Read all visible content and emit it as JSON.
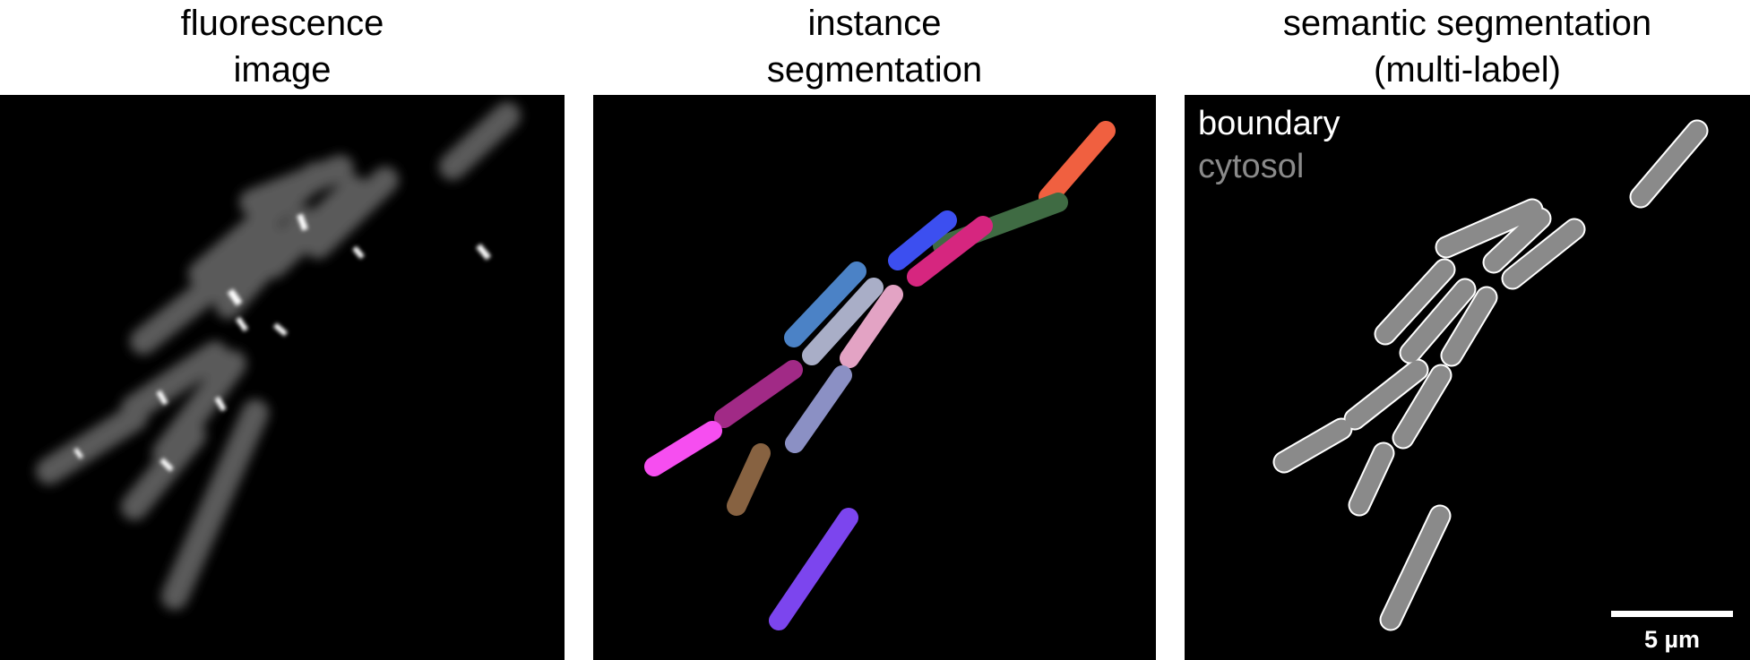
{
  "panels": {
    "fluorescence": {
      "title_line1": "fluorescence",
      "title_line2": "image"
    },
    "instance": {
      "title_line1": "instance",
      "title_line2": "segmentation"
    },
    "semantic": {
      "title_line1": "semantic segmentation",
      "title_line2": "(multi-label)",
      "legend": [
        {
          "label": "boundary",
          "color": "#ffffff"
        },
        {
          "label": "cytosol",
          "color": "#8a8a8a"
        }
      ],
      "scalebar_label": "5 µm"
    }
  },
  "colors": {
    "background": "#000000",
    "cytosol_fill": "#8a8a8a",
    "boundary": "#ffffff",
    "instance_palette": [
      "#f06040",
      "#3f6b43",
      "#3c4ff0",
      "#d6267f",
      "#4b82c6",
      "#a9aec7",
      "#e3a3c4",
      "#a12a86",
      "#8b90c4",
      "#f64ef0",
      "#876241",
      "#7c45ee"
    ]
  }
}
